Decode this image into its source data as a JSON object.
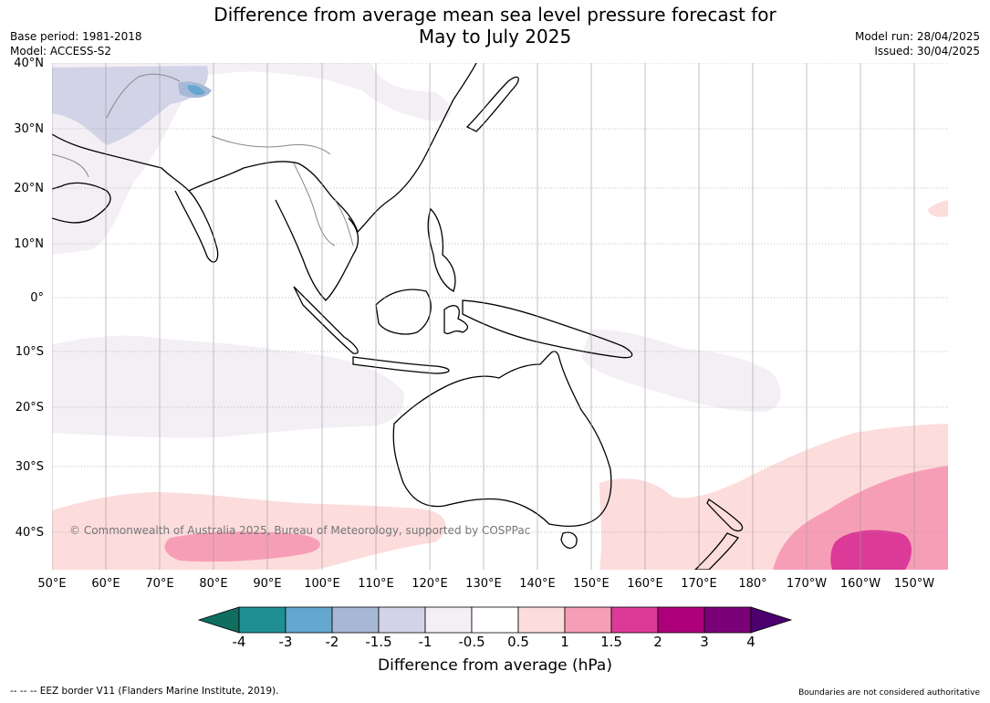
{
  "title_line1": "Difference from average mean sea level pressure forecast for",
  "title_line2": "May to July 2025",
  "meta_left": [
    "Base period: 1981-2018",
    "Model: ACCESS-S2"
  ],
  "meta_right": [
    "Model run: 28/04/2025",
    "Issued: 30/04/2025"
  ],
  "lat_labels": [
    "40°N",
    "30°N",
    "20°N",
    "10°N",
    "0°",
    "10°S",
    "20°S",
    "30°S",
    "40°S"
  ],
  "lon_labels": [
    "50°E",
    "60°E",
    "70°E",
    "80°E",
    "90°E",
    "100°E",
    "110°E",
    "120°E",
    "130°E",
    "140°E",
    "150°E",
    "160°E",
    "170°E",
    "180°",
    "170°W",
    "160°W",
    "150°W"
  ],
  "copyright": "© Commonwealth of Australia 2025, Bureau of Meteorology, supported by COSPPac",
  "colorbar": {
    "title": "Difference from average (hPa)",
    "labels": [
      "-4",
      "-3",
      "-2",
      "-1.5",
      "-1",
      "-0.5",
      "0.5",
      "1",
      "1.5",
      "2",
      "3",
      "4"
    ],
    "colors": [
      "#0f6e5f",
      "#1f8f94",
      "#65a7cf",
      "#a7b8d6",
      "#d2d3e6",
      "#f3eff5",
      "#ffffff",
      "#fddcdc",
      "#f79eb7",
      "#dc3a98",
      "#ad007a",
      "#7a0077",
      "#4b006e"
    ]
  },
  "footer_left": "--  --  -- EEZ border V11 (Flanders Marine Institute, 2019).",
  "footer_right": "Boundaries are not considered authoritative"
}
